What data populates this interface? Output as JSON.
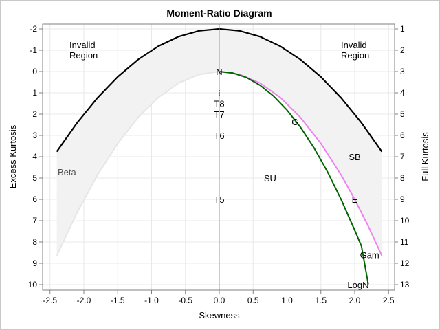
{
  "chart_data": {
    "type": "line",
    "title": "Moment-Ratio Diagram",
    "xlabel": "Skewness",
    "ylabel": "Excess Kurtosis",
    "y2label": "Full Kurtosis",
    "xlim": [
      -2.5,
      2.5
    ],
    "ylim": [
      -2,
      10
    ],
    "y_axis_reversed": true,
    "grid": true,
    "x_ticks": [
      "-2.5",
      "-2.0",
      "-1.5",
      "-1.0",
      "-0.5",
      "0.0",
      "0.5",
      "1.0",
      "1.5",
      "2.0",
      "2.5"
    ],
    "y_ticks": [
      "-2",
      "-1",
      "0",
      "1",
      "2",
      "3",
      "4",
      "5",
      "6",
      "7",
      "8",
      "9",
      "10"
    ],
    "y2_ticks": [
      "1",
      "2",
      "3",
      "4",
      "5",
      "6",
      "7",
      "8",
      "9",
      "10",
      "11",
      "12",
      "13"
    ],
    "regions": {
      "invalid_left": [
        "Invalid",
        "Region"
      ],
      "invalid_right": [
        "Invalid",
        "Region"
      ],
      "beta": "Beta"
    },
    "annotations": [
      {
        "text": "N",
        "x": 0.0,
        "y": 0.0
      },
      {
        "text": "T8",
        "x": 0.0,
        "y": 1.5
      },
      {
        "text": "T7",
        "x": 0.0,
        "y": 2.0
      },
      {
        "text": "T6",
        "x": 0.0,
        "y": 3.0
      },
      {
        "text": "T5",
        "x": 0.0,
        "y": 6.0
      },
      {
        "text": "SU",
        "x": 0.75,
        "y": 5.0
      },
      {
        "text": "SB",
        "x": 2.0,
        "y": 4.0
      },
      {
        "text": "G",
        "x": 1.12,
        "y": 2.35
      },
      {
        "text": "E",
        "x": 2.0,
        "y": 6.0
      },
      {
        "text": "Gam",
        "x": 2.22,
        "y": 8.6
      },
      {
        "text": "LogN",
        "x": 2.05,
        "y": 10.0
      }
    ],
    "colors": {
      "boundary": "#000000",
      "beta_fill": "#f2f2f2",
      "beta_edge": "#e6e6e6",
      "gamma_line": "#ee82ee",
      "lognormal_line": "#006400",
      "grid": "#e8e8e8",
      "axis": "#808080"
    },
    "series": [
      {
        "name": "Boundary",
        "x": [
          -2.4,
          -2.1,
          -1.8,
          -1.5,
          -1.2,
          -0.9,
          -0.6,
          -0.3,
          0.0,
          0.3,
          0.6,
          0.9,
          1.2,
          1.5,
          1.8,
          2.1,
          2.4
        ],
        "y": [
          3.76,
          2.41,
          1.24,
          0.25,
          -0.56,
          -1.19,
          -1.64,
          -1.91,
          -2.0,
          -1.91,
          -1.64,
          -1.19,
          -0.56,
          0.25,
          1.24,
          2.41,
          3.76
        ]
      },
      {
        "name": "Beta lower edge",
        "x": [
          -2.4,
          -2.1,
          -1.8,
          -1.5,
          -1.2,
          -0.9,
          -0.6,
          -0.3,
          0.0
        ],
        "y": [
          8.64,
          6.62,
          4.86,
          3.38,
          2.16,
          1.22,
          0.54,
          0.14,
          0.0
        ]
      },
      {
        "name": "Gamma",
        "x": [
          0.0,
          0.3,
          0.6,
          0.9,
          1.2,
          1.5,
          1.8,
          2.0,
          2.2,
          2.4
        ],
        "y": [
          0.0,
          0.135,
          0.54,
          1.215,
          2.16,
          3.375,
          4.86,
          6.0,
          7.26,
          8.64
        ]
      },
      {
        "name": "Lognormal",
        "x": [
          0.0,
          0.2,
          0.4,
          0.6,
          0.8,
          1.0,
          1.2,
          1.4,
          1.6,
          1.8,
          2.0,
          2.1,
          2.2
        ],
        "y": [
          0.0,
          0.07,
          0.28,
          0.64,
          1.15,
          1.81,
          2.62,
          3.59,
          4.72,
          6.01,
          7.45,
          8.2,
          9.98
        ]
      }
    ]
  }
}
